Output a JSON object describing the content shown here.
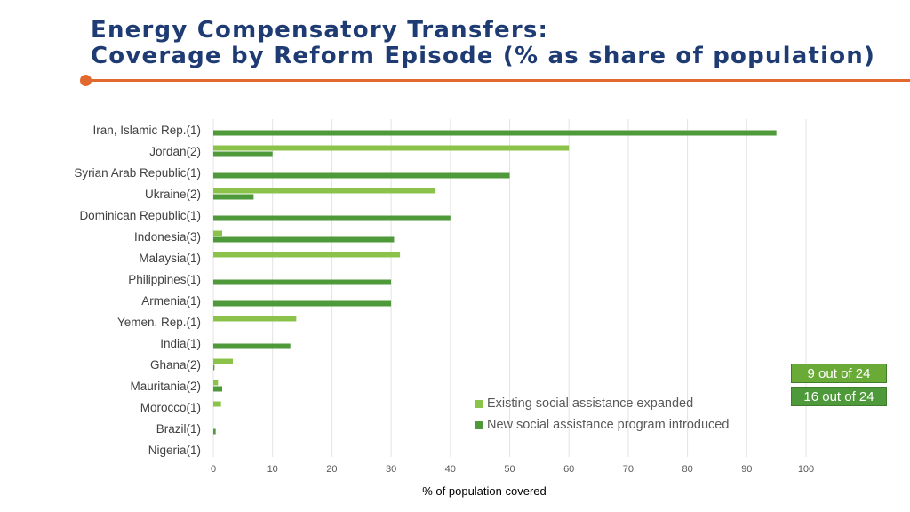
{
  "title_line1": "Energy Compensatory Transfers:",
  "title_line2": "Coverage by Reform Episode (% as share of population)",
  "colors": {
    "title": "#1f3b73",
    "accent_rule": "#e2692e",
    "existing": "#8bc34a",
    "new": "#4e9a3a",
    "badge_existing": "#6aab37",
    "badge_new": "#4e9a3a",
    "gridline": "#e3e3e3"
  },
  "badges": {
    "existing_count": "9 out of 24",
    "new_count": "16 out of 24"
  },
  "chart_data": {
    "type": "bar",
    "orientation": "horizontal",
    "categories": [
      "Iran, Islamic Rep.(1)",
      "Jordan(2)",
      "Syrian Arab Republic(1)",
      "Ukraine(2)",
      "Dominican Republic(1)",
      "Indonesia(3)",
      "Malaysia(1)",
      "Philippines(1)",
      "Armenia(1)",
      "Yemen, Rep.(1)",
      "India(1)",
      "Ghana(2)",
      "Mauritania(2)",
      "Morocco(1)",
      "Brazil(1)",
      "Nigeria(1)"
    ],
    "series": [
      {
        "name": "Existing social assistance expanded",
        "values": [
          null,
          60,
          null,
          37.5,
          null,
          1.5,
          31.5,
          null,
          null,
          14,
          null,
          3.3,
          0.8,
          1.3,
          null,
          null
        ]
      },
      {
        "name": "New social assistance program introduced",
        "values": [
          95,
          10,
          50,
          6.8,
          40,
          30.5,
          null,
          30,
          30,
          null,
          13,
          0.2,
          1.5,
          null,
          0.4,
          null
        ]
      }
    ],
    "xlim": [
      0,
      100
    ],
    "xticks": [
      0,
      10,
      20,
      30,
      40,
      50,
      60,
      70,
      80,
      90,
      100
    ],
    "xlabel": "% of population covered",
    "ylabel": "",
    "grid": "vertical",
    "legend_position": "bottom-right"
  }
}
